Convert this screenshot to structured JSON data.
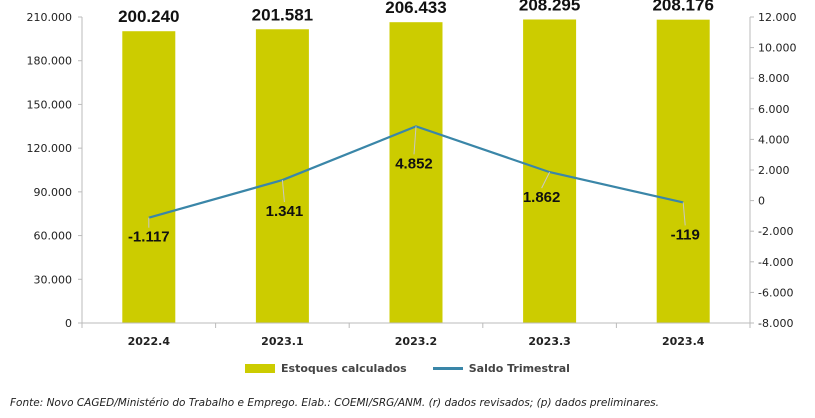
{
  "chart_data": {
    "type": "bar+line",
    "categories": [
      "2022.4",
      "2023.1",
      "2023.2",
      "2023.3",
      "2023.4"
    ],
    "series": [
      {
        "name": "Estoques calculados",
        "type": "bar",
        "axis": "left",
        "color": "#cccc00",
        "values": [
          200240,
          201581,
          206433,
          208295,
          208176
        ],
        "labels": [
          "200.240",
          "201.581",
          "206.433",
          "208.295",
          "208.176"
        ]
      },
      {
        "name": "Saldo Trimestral",
        "type": "line",
        "axis": "right",
        "color": "#3a86a8",
        "values": [
          -1117,
          1341,
          4852,
          1862,
          -119
        ],
        "labels": [
          "-1.117",
          "1.341",
          "4.852",
          "1.862",
          "-119"
        ]
      }
    ],
    "y_left": {
      "ylim": [
        0,
        210000
      ],
      "ticks": [
        0,
        30000,
        60000,
        90000,
        120000,
        150000,
        180000,
        210000
      ],
      "tick_labels": [
        "0",
        "30.000",
        "60.000",
        "90.000",
        "120.000",
        "150.000",
        "180.000",
        "210.000"
      ]
    },
    "y_right": {
      "ylim": [
        -8000,
        12000
      ],
      "ticks": [
        -8000,
        -6000,
        -4000,
        -2000,
        0,
        2000,
        4000,
        6000,
        8000,
        10000,
        12000
      ],
      "tick_labels": [
        "-8.000",
        "-6.000",
        "-4.000",
        "-2.000",
        "0",
        "2.000",
        "4.000",
        "6.000",
        "8.000",
        "10.000",
        "12.000"
      ]
    },
    "grid": false,
    "legend_position": "bottom-center"
  },
  "source_note": "Fonte: Novo CAGED/Ministério do Trabalho e Emprego. Elab.: COEMI/SRG/ANM. (r) dados revisados; (p) dados preliminares."
}
